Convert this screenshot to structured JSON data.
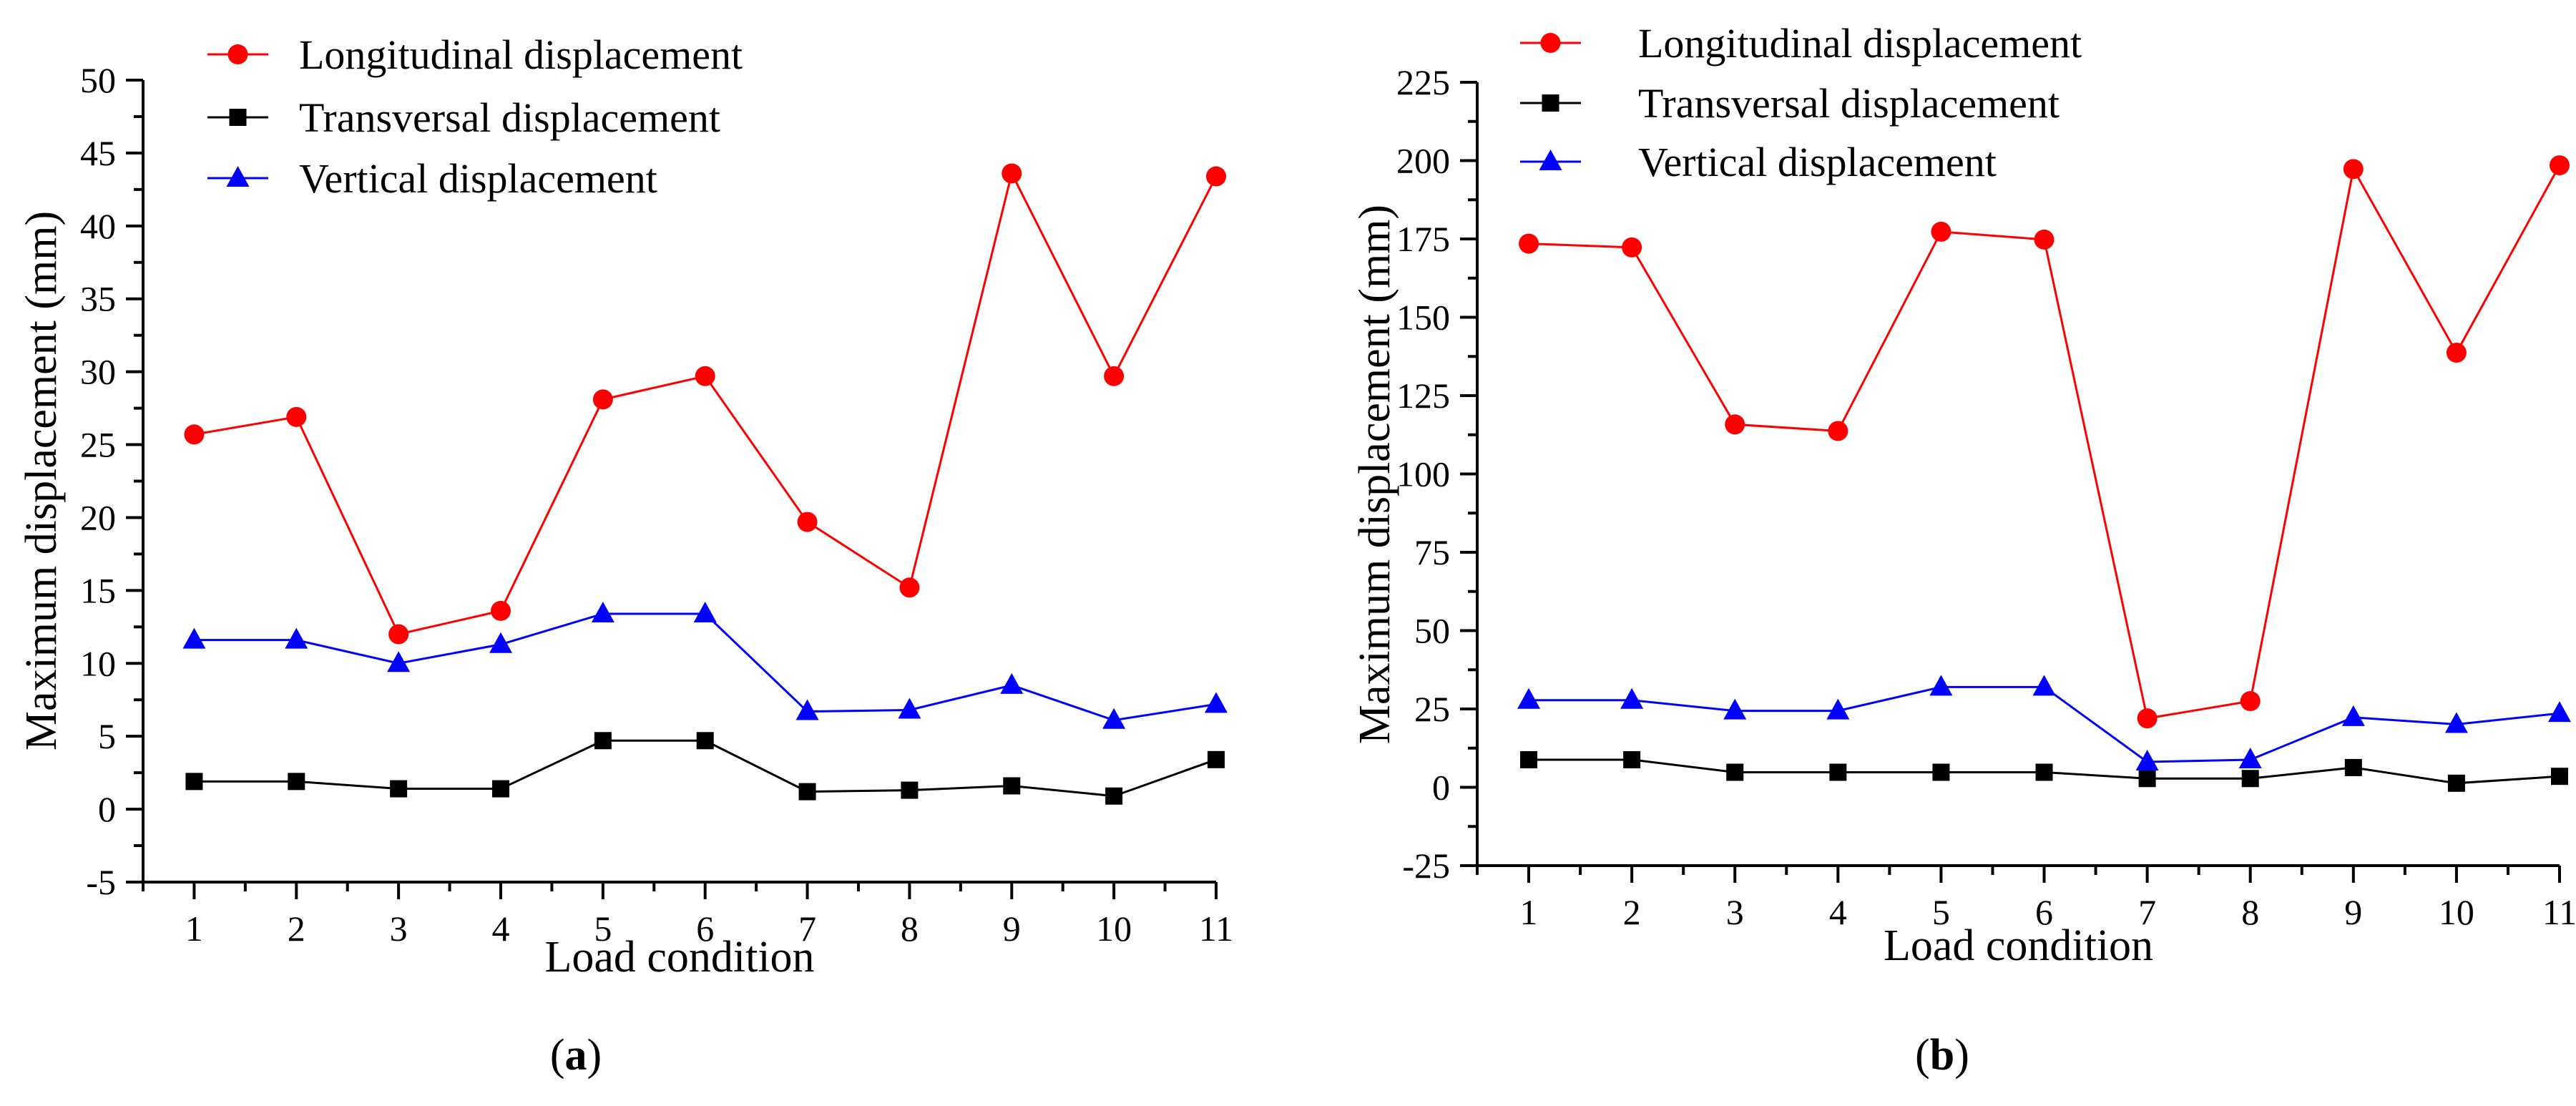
{
  "chart_data": [
    {
      "panel": "a",
      "type": "line",
      "xlabel": "Load condition",
      "ylabel": "Maximum displacement (mm)",
      "categories": [
        1,
        2,
        3,
        4,
        5,
        6,
        7,
        8,
        9,
        10,
        11
      ],
      "xlim": [
        0.5,
        11
      ],
      "ylim": [
        -5,
        50
      ],
      "yticks": [
        -5,
        0,
        5,
        10,
        15,
        20,
        25,
        30,
        35,
        40,
        45,
        50
      ],
      "legend_position": "top-left",
      "series": [
        {
          "name": "Longitudinal displacement",
          "color": "#ff0000",
          "marker": "circle",
          "values": [
            25.7,
            26.9,
            12.0,
            13.6,
            28.1,
            29.7,
            19.7,
            15.2,
            43.6,
            29.7,
            43.4
          ]
        },
        {
          "name": "Transversal displacement",
          "color": "#000000",
          "marker": "square",
          "values": [
            1.9,
            1.9,
            1.4,
            1.4,
            4.7,
            4.7,
            1.2,
            1.3,
            1.6,
            0.9,
            3.4
          ]
        },
        {
          "name": "Vertical displacement",
          "color": "#0000ff",
          "marker": "triangle",
          "values": [
            11.6,
            11.6,
            10.0,
            11.3,
            13.4,
            13.4,
            6.7,
            6.8,
            8.5,
            6.1,
            7.2
          ]
        }
      ]
    },
    {
      "panel": "b",
      "type": "line",
      "xlabel": "Load condition",
      "ylabel": "Maximum displacement (mm)",
      "categories": [
        1,
        2,
        3,
        4,
        5,
        6,
        7,
        8,
        9,
        10,
        11
      ],
      "xlim": [
        0.5,
        11
      ],
      "ylim": [
        -25,
        225
      ],
      "yticks": [
        -25,
        0,
        25,
        50,
        75,
        100,
        125,
        150,
        175,
        200,
        225
      ],
      "legend_position": "top-left",
      "series": [
        {
          "name": "Longitudinal displacement",
          "color": "#ff0000",
          "marker": "circle",
          "values": [
            173.5,
            172.3,
            115.8,
            113.7,
            177.3,
            174.8,
            22.0,
            27.5,
            197.3,
            138.7,
            198.5
          ]
        },
        {
          "name": "Transversal displacement",
          "color": "#000000",
          "marker": "square",
          "values": [
            8.8,
            8.8,
            4.8,
            4.8,
            4.8,
            4.8,
            2.8,
            2.8,
            6.3,
            1.3,
            3.5
          ]
        },
        {
          "name": "Vertical displacement",
          "color": "#0000ff",
          "marker": "triangle",
          "values": [
            27.8,
            27.8,
            24.4,
            24.4,
            32.0,
            32.0,
            8.1,
            8.8,
            22.3,
            20.1,
            23.6
          ]
        }
      ]
    }
  ],
  "panel_labels": [
    {
      "open": "(",
      "letter": "a",
      "close": ")"
    },
    {
      "open": "(",
      "letter": "b",
      "close": ")"
    }
  ]
}
